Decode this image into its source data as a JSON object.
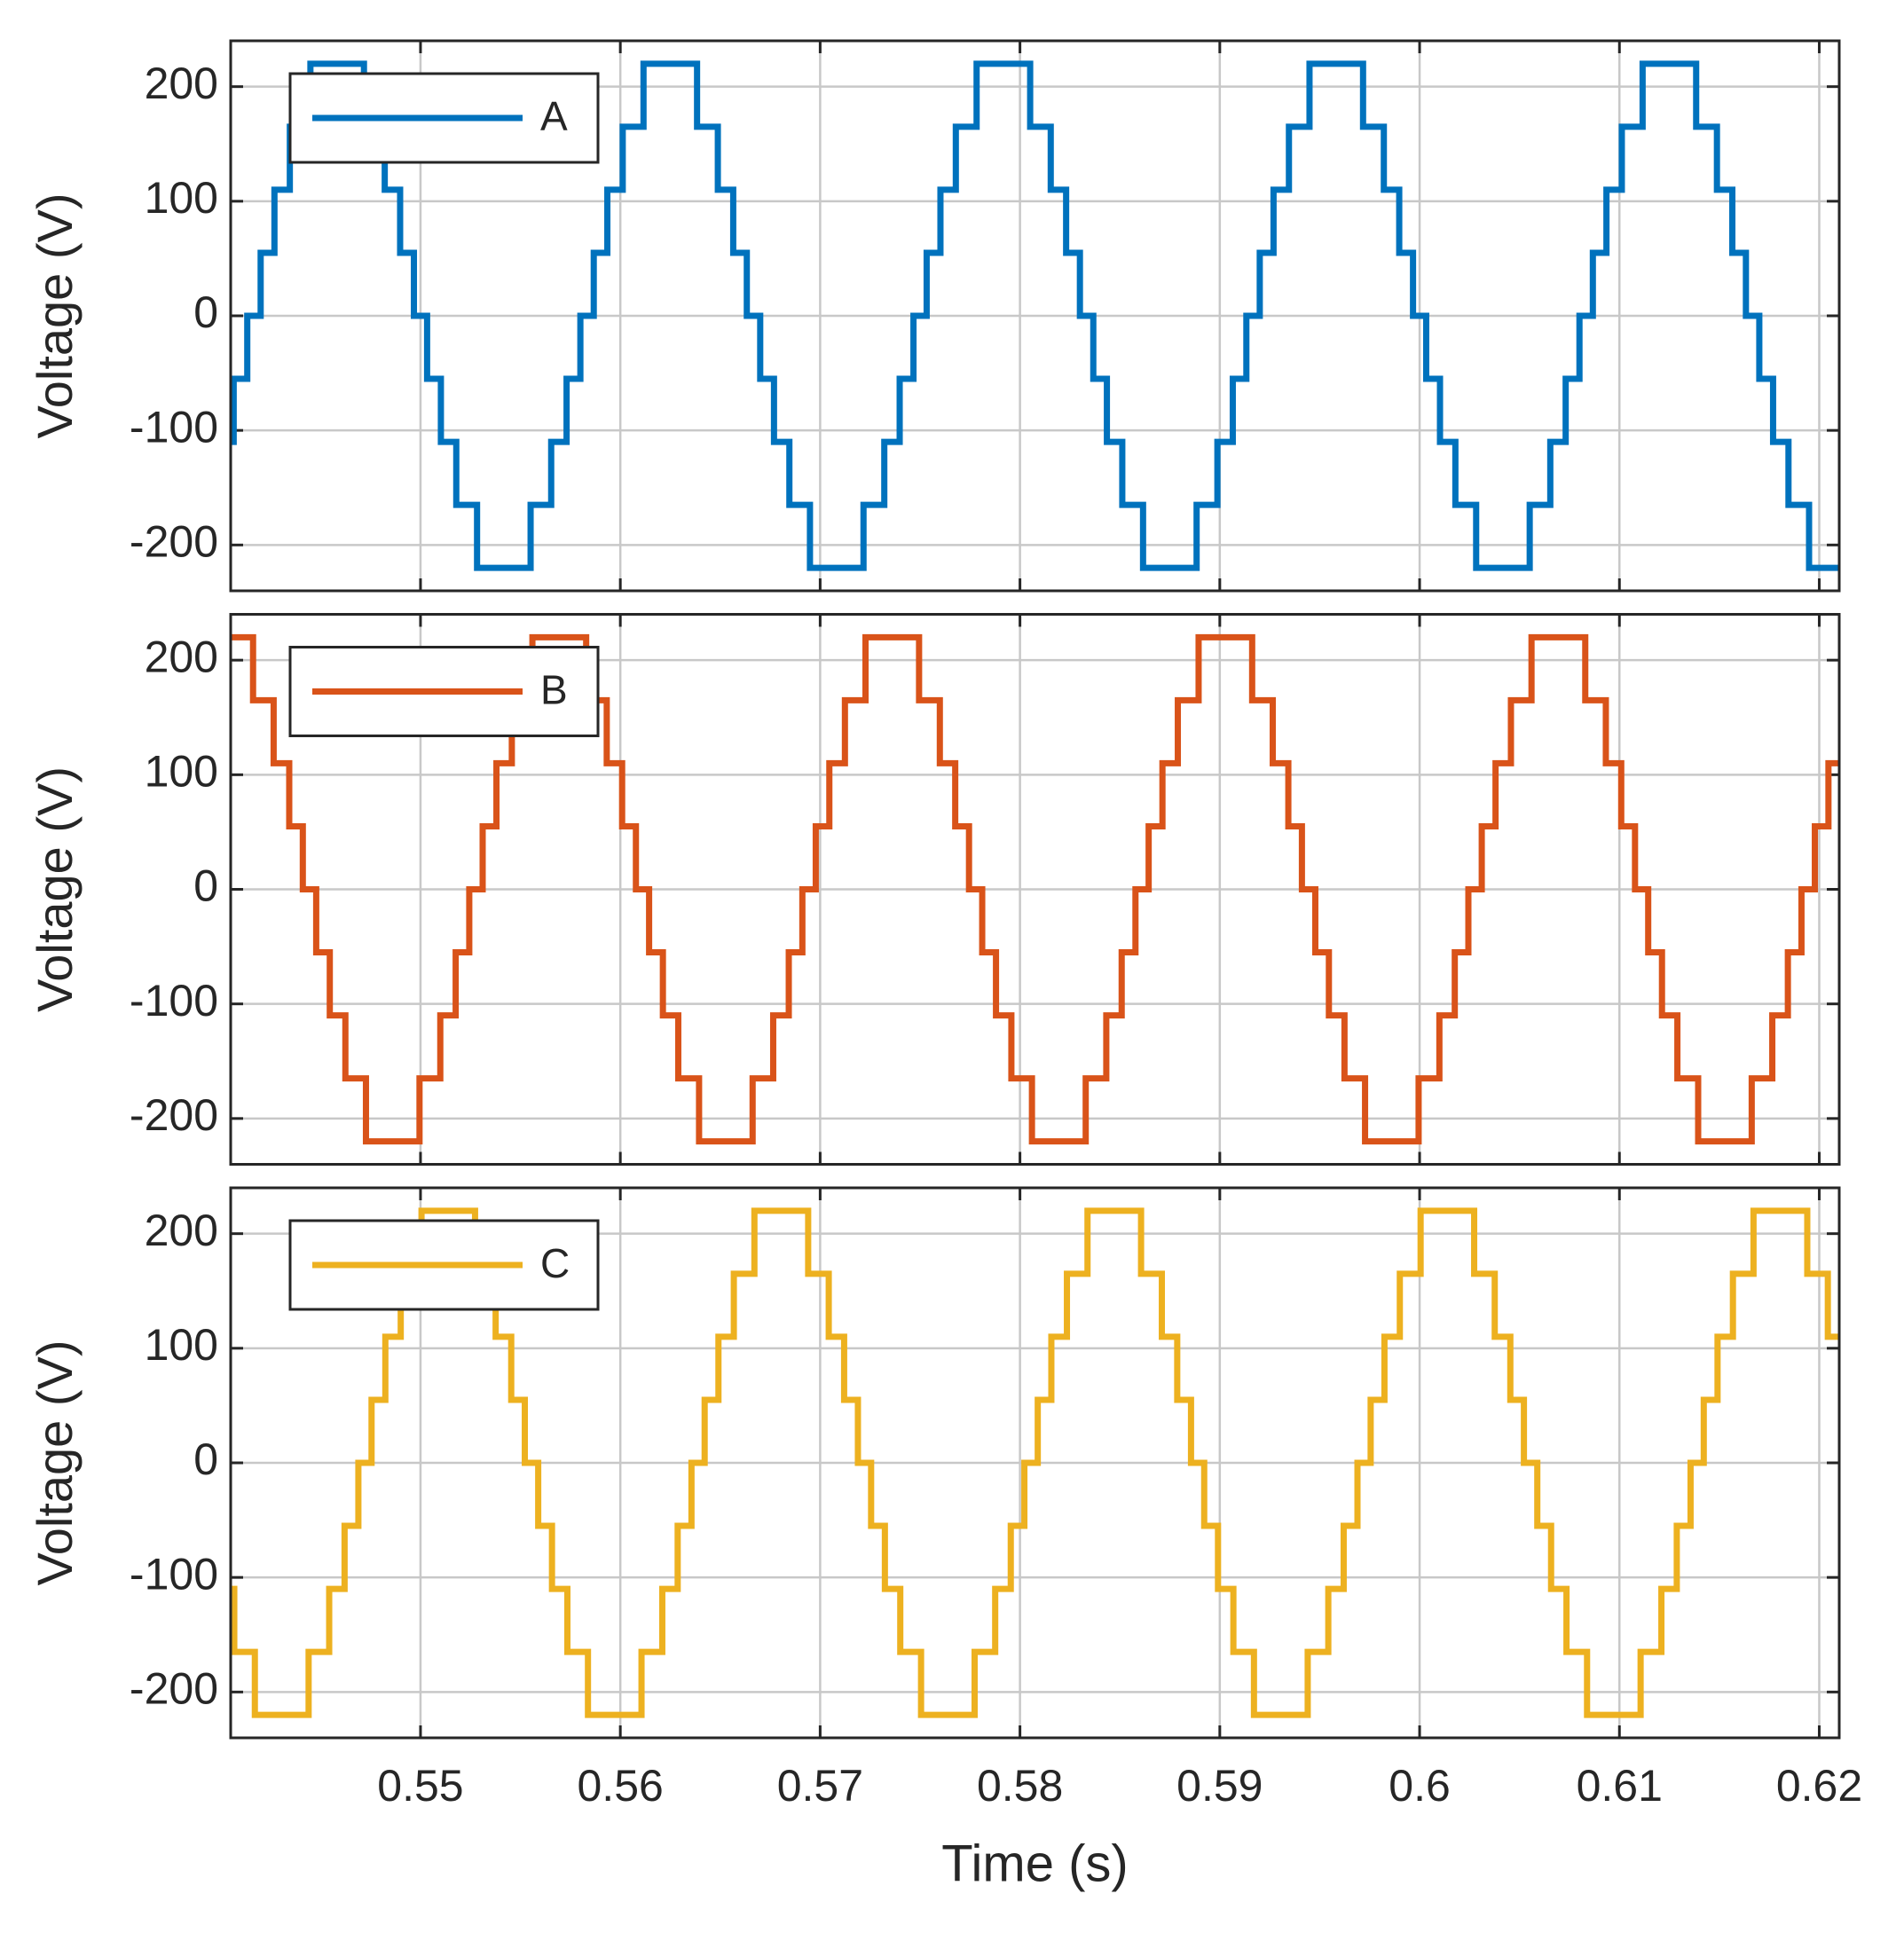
{
  "chart_data": [
    {
      "type": "line",
      "step": "post",
      "ylabel": "Voltage (V)",
      "grid": true,
      "legend": "upper left",
      "xtick_labels": false,
      "xlim": [
        0.5405,
        0.621
      ],
      "xticks": [
        0.55,
        0.56,
        0.57,
        0.58,
        0.59,
        0.6,
        0.61,
        0.62
      ],
      "ylim": [
        -240,
        240
      ],
      "yticks": [
        -200,
        -100,
        0,
        100,
        200
      ],
      "x": [
        0.5405,
        0.54065,
        0.54133,
        0.542,
        0.54269,
        0.54346,
        0.54449,
        0.54717,
        0.54821,
        0.54898,
        0.54967,
        0.55033,
        0.55102,
        0.55179,
        0.55283,
        0.55551,
        0.55654,
        0.55731,
        0.558,
        0.55867,
        0.55935,
        0.56012,
        0.56116,
        0.56384,
        0.56488,
        0.56565,
        0.56633,
        0.567,
        0.56769,
        0.56846,
        0.56949,
        0.57217,
        0.57321,
        0.57398,
        0.57467,
        0.57533,
        0.57602,
        0.57679,
        0.57783,
        0.58051,
        0.58154,
        0.58231,
        0.583,
        0.58367,
        0.58435,
        0.58512,
        0.58616,
        0.58884,
        0.58988,
        0.59065,
        0.59133,
        0.592,
        0.59269,
        0.59346,
        0.59449,
        0.59717,
        0.59821,
        0.59898,
        0.59967,
        0.60033,
        0.60102,
        0.60179,
        0.60283,
        0.60551,
        0.60654,
        0.60731,
        0.608,
        0.60867,
        0.60935,
        0.61012,
        0.61116,
        0.61384,
        0.61488,
        0.61565,
        0.61633,
        0.617,
        0.61769,
        0.61846,
        0.61949
      ],
      "series": [
        {
          "name": "A",
          "color": "#0072bd",
          "values": [
            -110,
            -55,
            0,
            55,
            110,
            165,
            220,
            165,
            110,
            55,
            0,
            -55,
            -110,
            -165,
            -220,
            -165,
            -110,
            -55,
            0,
            55,
            110,
            165,
            220,
            165,
            110,
            55,
            0,
            -55,
            -110,
            -165,
            -220,
            -165,
            -110,
            -55,
            0,
            55,
            110,
            165,
            220,
            165,
            110,
            55,
            0,
            -55,
            -110,
            -165,
            -220,
            -165,
            -110,
            -55,
            0,
            55,
            110,
            165,
            220,
            165,
            110,
            55,
            0,
            -55,
            -110,
            -165,
            -220,
            -165,
            -110,
            -55,
            0,
            55,
            110,
            165,
            220,
            165,
            110,
            55,
            0,
            -55,
            -110,
            -165,
            -220
          ]
        }
      ]
    },
    {
      "type": "line",
      "step": "post",
      "ylabel": "Voltage (V)",
      "grid": true,
      "legend": "upper left",
      "xtick_labels": false,
      "xlim": [
        0.5405,
        0.621
      ],
      "xticks": [
        0.55,
        0.56,
        0.57,
        0.58,
        0.59,
        0.6,
        0.61,
        0.62
      ],
      "ylim": [
        -240,
        240
      ],
      "yticks": [
        -200,
        -100,
        0,
        100,
        200
      ],
      "x": [
        0.5405,
        0.54162,
        0.54265,
        0.54343,
        0.54411,
        0.54478,
        0.54546,
        0.54624,
        0.54727,
        0.54995,
        0.55099,
        0.55176,
        0.55244,
        0.55311,
        0.5538,
        0.55457,
        0.5556,
        0.55829,
        0.55932,
        0.56009,
        0.56078,
        0.56144,
        0.56213,
        0.5629,
        0.56394,
        0.56662,
        0.56765,
        0.56843,
        0.56911,
        0.56978,
        0.57046,
        0.57124,
        0.57227,
        0.57495,
        0.57599,
        0.57676,
        0.57745,
        0.57811,
        0.5788,
        0.57957,
        0.5806,
        0.58329,
        0.58432,
        0.58509,
        0.58578,
        0.58644,
        0.58713,
        0.5879,
        0.58894,
        0.59162,
        0.59265,
        0.59343,
        0.59411,
        0.59478,
        0.59546,
        0.59624,
        0.59727,
        0.59995,
        0.60099,
        0.60176,
        0.60244,
        0.60311,
        0.6038,
        0.60457,
        0.6056,
        0.60829,
        0.60932,
        0.61009,
        0.61078,
        0.61144,
        0.61213,
        0.6129,
        0.61394,
        0.61662,
        0.61765,
        0.61843,
        0.61911,
        0.61978,
        0.62046
      ],
      "series": [
        {
          "name": "B",
          "color": "#d95319",
          "values": [
            220,
            165,
            110,
            55,
            0,
            -55,
            -110,
            -165,
            -220,
            -165,
            -110,
            -55,
            0,
            55,
            110,
            165,
            220,
            165,
            110,
            55,
            0,
            -55,
            -110,
            -165,
            -220,
            -165,
            -110,
            -55,
            0,
            55,
            110,
            165,
            220,
            165,
            110,
            55,
            0,
            -55,
            -110,
            -165,
            -220,
            -165,
            -110,
            -55,
            0,
            55,
            110,
            165,
            220,
            165,
            110,
            55,
            0,
            -55,
            -110,
            -165,
            -220,
            -165,
            -110,
            -55,
            0,
            55,
            110,
            165,
            220,
            165,
            110,
            55,
            0,
            -55,
            -110,
            -165,
            -220,
            -165,
            -110,
            -55,
            0,
            55,
            110
          ]
        }
      ]
    },
    {
      "type": "line",
      "step": "post",
      "ylabel": "Voltage (V)",
      "xlabel": "Time (s)",
      "grid": true,
      "legend": "upper left",
      "xtick_labels": true,
      "xlim": [
        0.5405,
        0.621
      ],
      "xticks": [
        0.55,
        0.56,
        0.57,
        0.58,
        0.59,
        0.6,
        0.61,
        0.62
      ],
      "ylim": [
        -240,
        240
      ],
      "yticks": [
        -200,
        -100,
        0,
        100,
        200
      ],
      "x": [
        0.5405,
        0.54068,
        0.54171,
        0.5444,
        0.54543,
        0.5462,
        0.54689,
        0.54755,
        0.54824,
        0.54901,
        0.55005,
        0.55273,
        0.55376,
        0.55454,
        0.55522,
        0.55589,
        0.55658,
        0.55735,
        0.55838,
        0.56106,
        0.5621,
        0.56287,
        0.56356,
        0.56422,
        0.56491,
        0.56568,
        0.56671,
        0.5694,
        0.57043,
        0.5712,
        0.57189,
        0.57255,
        0.57324,
        0.57401,
        0.57505,
        0.57773,
        0.57876,
        0.57954,
        0.58022,
        0.58089,
        0.58157,
        0.58235,
        0.58338,
        0.58606,
        0.5871,
        0.58787,
        0.58856,
        0.58922,
        0.58991,
        0.59068,
        0.59171,
        0.5944,
        0.59543,
        0.5962,
        0.59689,
        0.59755,
        0.59824,
        0.59901,
        0.60005,
        0.60273,
        0.60376,
        0.60454,
        0.60522,
        0.60589,
        0.60658,
        0.60735,
        0.60838,
        0.61106,
        0.6121,
        0.61287,
        0.61356,
        0.61422,
        0.61491,
        0.61568,
        0.61671,
        0.6194,
        0.62043
      ],
      "series": [
        {
          "name": "C",
          "color": "#edb120",
          "values": [
            -110,
            -165,
            -220,
            -165,
            -110,
            -55,
            0,
            55,
            110,
            165,
            220,
            165,
            110,
            55,
            0,
            -55,
            -110,
            -165,
            -220,
            -165,
            -110,
            -55,
            0,
            55,
            110,
            165,
            220,
            165,
            110,
            55,
            0,
            -55,
            -110,
            -165,
            -220,
            -165,
            -110,
            -55,
            0,
            55,
            110,
            165,
            220,
            165,
            110,
            55,
            0,
            -55,
            -110,
            -165,
            -220,
            -165,
            -110,
            -55,
            0,
            55,
            110,
            165,
            220,
            165,
            110,
            55,
            0,
            -55,
            -110,
            -165,
            -220,
            -165,
            -110,
            -55,
            0,
            55,
            110,
            165,
            220,
            165,
            110
          ]
        }
      ]
    }
  ]
}
